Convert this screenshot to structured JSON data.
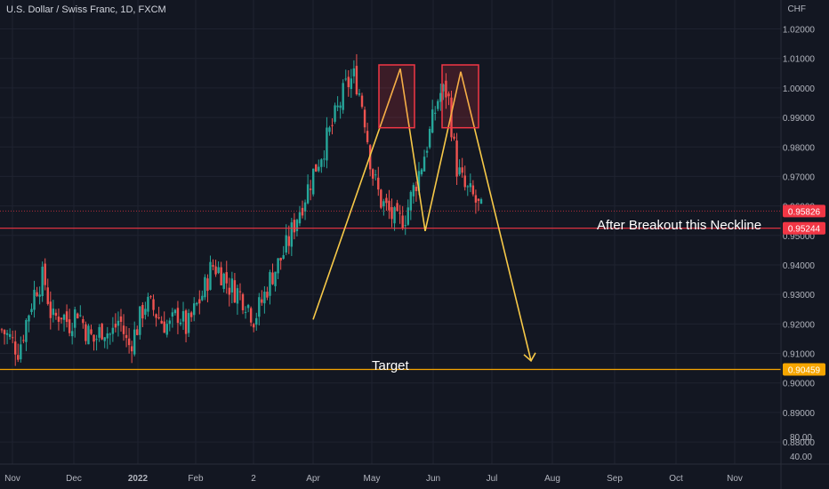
{
  "header": {
    "symbol_title": "U.S. Dollar / Swiss Franc, 1D, FXCM",
    "currency": "CHF"
  },
  "colors": {
    "background": "#131722",
    "grid": "#1f2330",
    "up": "#26a69a",
    "down": "#ef5350",
    "pattern_line": "#f7c948",
    "neckline": "#f23645",
    "target_line": "#f7a600",
    "box": "#f23645"
  },
  "chart_data": {
    "type": "candlestick",
    "title": "U.S. Dollar / Swiss Franc, 1D, FXCM",
    "ylim": [
      0.8755,
      1.0295
    ],
    "price_ticks": [
      "1.02000",
      "1.01000",
      "1.00000",
      "0.99000",
      "0.98000",
      "0.97000",
      "0.96000",
      "0.95000",
      "0.94000",
      "0.93000",
      "0.92000",
      "0.91000",
      "0.90000",
      "0.89000",
      "0.88000"
    ],
    "extra_ticks": [
      "80.00",
      "40.00"
    ],
    "time_ticks": [
      "Nov",
      "Dec",
      "2022",
      "Feb",
      "2",
      "Apr",
      "May",
      "Jun",
      "Jul",
      "Aug",
      "Sep",
      "Oct",
      "Nov"
    ],
    "close_path": [
      [
        "Nov",
        0.918
      ],
      [
        "",
        0.915
      ],
      [
        "",
        0.911
      ],
      [
        "Dec",
        0.922
      ],
      [
        "",
        0.932
      ],
      [
        "",
        0.936
      ],
      [
        "",
        0.921
      ],
      [
        "",
        0.924
      ],
      [
        "",
        0.92
      ],
      [
        "",
        0.925
      ],
      [
        "",
        0.918
      ],
      [
        "",
        0.914
      ],
      [
        "",
        0.919
      ],
      [
        "2022",
        0.916
      ],
      [
        "",
        0.922
      ],
      [
        "",
        0.912
      ],
      [
        "",
        0.918
      ],
      [
        "",
        0.927
      ],
      [
        "Feb",
        0.925
      ],
      [
        "",
        0.921
      ],
      [
        "",
        0.919
      ],
      [
        "",
        0.924
      ],
      [
        "",
        0.918
      ],
      [
        "2",
        0.925
      ],
      [
        "",
        0.931
      ],
      [
        "",
        0.94
      ],
      [
        "",
        0.938
      ],
      [
        "",
        0.933
      ],
      [
        "",
        0.931
      ],
      [
        "",
        0.928
      ],
      [
        "Apr",
        0.922
      ],
      [
        "",
        0.928
      ],
      [
        "",
        0.936
      ],
      [
        "",
        0.941
      ],
      [
        "",
        0.947
      ],
      [
        "",
        0.956
      ],
      [
        "",
        0.963
      ],
      [
        "",
        0.971
      ],
      [
        "",
        0.978
      ],
      [
        "May",
        0.985
      ],
      [
        "",
        0.993
      ],
      [
        "",
        1.001
      ],
      [
        "",
        1.004
      ],
      [
        "",
        0.993
      ],
      [
        "",
        0.972
      ],
      [
        "",
        0.962
      ],
      [
        "",
        0.958
      ],
      [
        "Jun",
        0.954
      ],
      [
        "",
        0.957
      ],
      [
        "",
        0.966
      ],
      [
        "",
        0.975
      ],
      [
        "",
        0.986
      ],
      [
        "",
        0.998
      ],
      [
        "",
        0.999
      ],
      [
        "",
        0.974
      ],
      [
        "",
        0.966
      ],
      [
        "",
        0.963
      ],
      [
        "Jul",
        0.958
      ]
    ],
    "series": [
      {
        "name": "",
        "kind": "candles"
      }
    ],
    "price_labels": [
      {
        "value": 0.95826,
        "text": "0.95826",
        "color": "#f23645"
      },
      {
        "value": 0.95244,
        "text": "0.95244",
        "color": "#f23645"
      },
      {
        "value": 0.90459,
        "text": "0.90459",
        "color": "#f7a600"
      }
    ],
    "annotations": {
      "neckline_text": "After Breakout this Neckline",
      "target_text": "Target",
      "neckline_value": 0.95244,
      "target_value": 0.90459,
      "pattern": "double top"
    }
  }
}
